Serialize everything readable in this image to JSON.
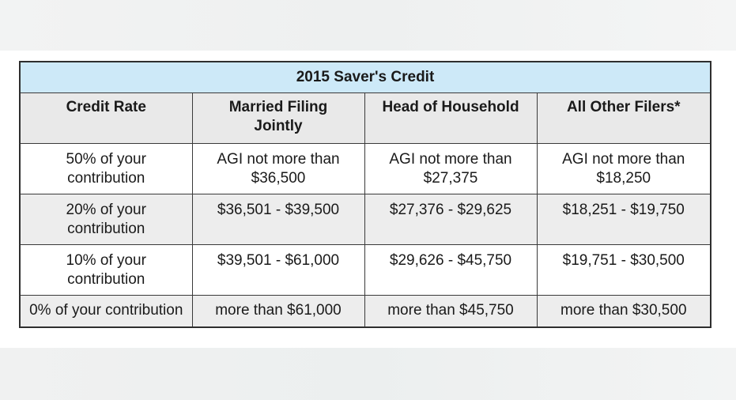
{
  "title": "2015 Saver's Credit",
  "headers": [
    "Credit Rate",
    "Married Filing\nJointly",
    "Head of Household",
    "All Other Filers*"
  ],
  "rows": [
    {
      "rate": "50% of your\ncontribution",
      "mfj": "AGI not more than\n$36,500",
      "hoh": "AGI not more than\n$27,375",
      "other": "AGI not more than\n$18,250"
    },
    {
      "rate": "20% of your\ncontribution",
      "mfj": "$36,501 - $39,500",
      "hoh": "$27,376 - $29,625",
      "other": "$18,251 - $19,750"
    },
    {
      "rate": "10% of your\ncontribution",
      "mfj": "$39,501 - $61,000",
      "hoh": "$29,626 - $45,750",
      "other": "$19,751 - $30,500"
    },
    {
      "rate": "0% of your contribution",
      "mfj": "more than $61,000",
      "hoh": "more than $45,750",
      "other": "more than $30,500"
    }
  ],
  "colors": {
    "title_bg": "#cde9f8",
    "header_bg": "#e9e9e9",
    "shaded_row_bg": "#ededed"
  }
}
